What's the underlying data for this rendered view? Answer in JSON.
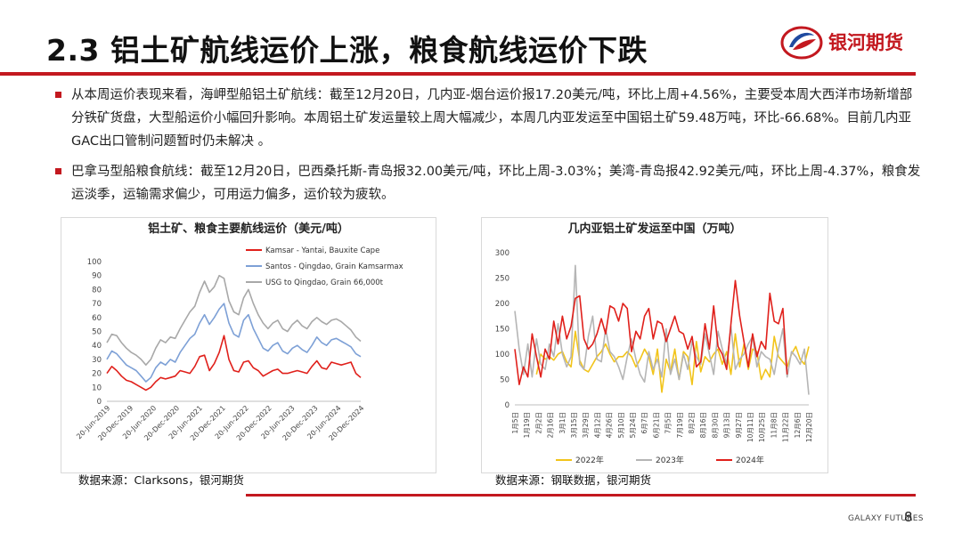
{
  "slide": {
    "title": "2.3 铝土矿航线运价上涨，粮食航线运价下跌",
    "logo_text": "银河期货",
    "footer_brand": "GALAXY FUTURES",
    "page_number": "8",
    "accent_color": "#c3181f"
  },
  "bullets": [
    "从本周运价表现来看，海岬型船铝土矿航线：截至12月20日，几内亚-烟台运价报17.20美元/吨，环比上周+4.56%，主要受本周大西洋市场新增部分铁矿货盘，大型船运价小幅回升影响。本周铝土矿发运量较上周大幅减少，本周几内亚发运至中国铝土矿59.48万吨，环比-66.68%。目前几内亚GAC出口管制问题暂时仍未解决 。",
    "巴拿马型船粮食航线：截至12月20日，巴西桑托斯-青岛报32.00美元/吨，环比上周-3.03%；美湾-青岛报42.92美元/吨，环比上周-4.37%，粮食发运淡季，运输需求偏少，可用运力偏多，运价较为疲软。"
  ],
  "sources": {
    "left": "数据来源：Clarksons，银河期货",
    "right": "数据来源：钢联数据，银河期货"
  },
  "chart_data": [
    {
      "type": "line",
      "title": "铝土矿、粮食主要航线运价（美元/吨）",
      "ylim": [
        0,
        100
      ],
      "yticks": [
        0,
        10,
        20,
        30,
        40,
        50,
        60,
        70,
        80,
        90,
        100
      ],
      "xticks": [
        "20-Jun-2019",
        "20-Dec-2019",
        "20-Jun-2020",
        "20-Dec-2020",
        "20-Jun-2021",
        "20-Dec-2021",
        "20-Jun-2022",
        "20-Dec-2022",
        "20-Jun-2023",
        "20-Dec-2023",
        "20-Jun-2024",
        "20-Dec-2024"
      ],
      "grid": false,
      "legend": "top-left",
      "series": [
        {
          "name": "Kamsar - Yantai,  Bauxite Cape",
          "color": "#e0201b",
          "values": [
            20,
            25,
            22,
            18,
            15,
            14,
            12,
            10,
            8,
            10,
            14,
            17,
            16,
            17,
            18,
            22,
            21,
            20,
            25,
            32,
            33,
            22,
            27,
            35,
            47,
            30,
            22,
            21,
            28,
            29,
            24,
            22,
            18,
            20,
            22,
            23,
            20,
            20,
            21,
            22,
            21,
            20,
            25,
            29,
            24,
            23,
            28,
            27,
            26,
            27,
            28,
            20,
            17
          ]
        },
        {
          "name": "Santos - Qingdao,  Grain Kamsarmax",
          "color": "#7da0d6",
          "values": [
            30,
            36,
            34,
            30,
            26,
            24,
            22,
            18,
            14,
            17,
            24,
            28,
            26,
            30,
            28,
            35,
            40,
            45,
            48,
            56,
            62,
            55,
            60,
            66,
            70,
            56,
            48,
            46,
            58,
            62,
            52,
            45,
            38,
            36,
            40,
            42,
            36,
            34,
            38,
            40,
            37,
            35,
            40,
            46,
            42,
            40,
            44,
            45,
            43,
            41,
            39,
            34,
            32
          ]
        },
        {
          "name": "USG to Qingdao,  Grain 66,000t",
          "color": "#a8a8a8",
          "values": [
            42,
            48,
            47,
            42,
            38,
            35,
            33,
            30,
            26,
            30,
            38,
            44,
            42,
            46,
            45,
            52,
            58,
            64,
            68,
            78,
            86,
            78,
            82,
            90,
            88,
            72,
            64,
            62,
            74,
            80,
            70,
            62,
            56,
            52,
            56,
            58,
            52,
            50,
            55,
            58,
            54,
            52,
            57,
            60,
            57,
            55,
            58,
            59,
            57,
            54,
            51,
            46,
            43
          ]
        }
      ]
    },
    {
      "type": "line",
      "title": "几内亚铝土矿发运至中国（万吨）",
      "ylim": [
        0,
        300
      ],
      "yticks": [
        0,
        50,
        100,
        150,
        200,
        250,
        300
      ],
      "xticks": [
        "1月5日",
        "1月19日",
        "2月2日",
        "2月16日",
        "3月1日",
        "3月15日",
        "3月29日",
        "4月12日",
        "4月26日",
        "5月10日",
        "5月24日",
        "6月7日",
        "6月21日",
        "7月5日",
        "7月19日",
        "8月2日",
        "8月16日",
        "8月30日",
        "9月13日",
        "9月27日",
        "10月11日",
        "10月25日",
        "11月8日",
        "11月22日",
        "12月6日",
        "12月20日"
      ],
      "grid": false,
      "legend": "bottom",
      "series": [
        {
          "name": "2022年",
          "color": "#f2c41a",
          "values": [
            null,
            null,
            null,
            null,
            null,
            60,
            100,
            90,
            95,
            88,
            100,
            105,
            85,
            75,
            145,
            88,
            70,
            65,
            80,
            95,
            105,
            120,
            100,
            85,
            95,
            95,
            105,
            95,
            75,
            90,
            110,
            95,
            60,
            110,
            25,
            90,
            65,
            110,
            50,
            105,
            95,
            40,
            125,
            65,
            95,
            85,
            100,
            110,
            80,
            105,
            60,
            140,
            75,
            120,
            70,
            110,
            105,
            50,
            70,
            55,
            135,
            95,
            85,
            75,
            100,
            115,
            90,
            80,
            115
          ]
        },
        {
          "name": "2023年",
          "color": "#b5b5b5",
          "values": [
            185,
            110,
            60,
            120,
            55,
            130,
            80,
            70,
            120,
            95,
            160,
            100,
            75,
            95,
            275,
            80,
            70,
            135,
            175,
            90,
            85,
            150,
            105,
            95,
            75,
            50,
            95,
            130,
            90,
            60,
            45,
            105,
            70,
            90,
            55,
            150,
            60,
            90,
            50,
            100,
            70,
            125,
            95,
            80,
            140,
            100,
            60,
            145,
            110,
            80,
            155,
            70,
            90,
            100,
            120,
            135,
            75,
            105,
            95,
            90,
            60,
            110,
            150,
            55,
            105,
            95,
            80,
            110,
            20
          ]
        },
        {
          "name": "2024年",
          "color": "#e0201b",
          "values": [
            110,
            40,
            75,
            55,
            140,
            95,
            55,
            110,
            90,
            165,
            120,
            175,
            130,
            155,
            210,
            215,
            130,
            110,
            120,
            140,
            170,
            140,
            195,
            190,
            165,
            200,
            190,
            105,
            145,
            130,
            175,
            190,
            130,
            165,
            160,
            125,
            150,
            175,
            145,
            140,
            110,
            135,
            75,
            85,
            160,
            110,
            195,
            115,
            100,
            70,
            160,
            245,
            175,
            125,
            75,
            140,
            95,
            125,
            110,
            220,
            165,
            160,
            190,
            60
          ]
        }
      ]
    }
  ]
}
